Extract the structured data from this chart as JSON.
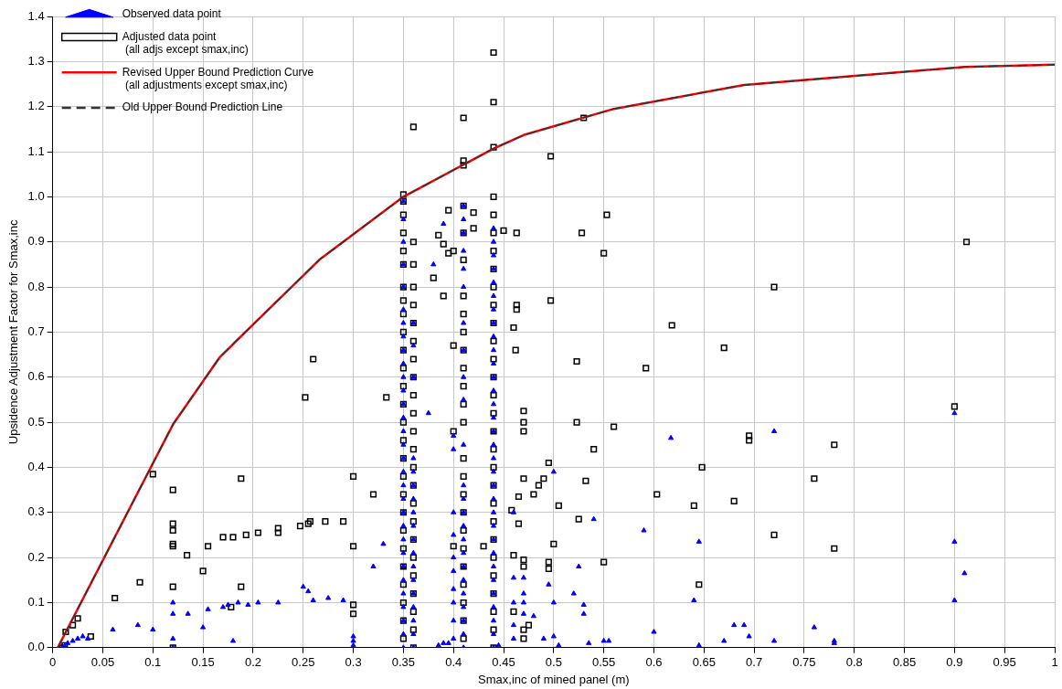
{
  "chart_data": {
    "type": "scatter",
    "xlabel": "Smax,inc of mined panel (m)",
    "ylabel": "Upsidence Adjustment Factor for Smax,inc",
    "xlim": [
      0,
      1
    ],
    "xticks": [
      0,
      0.05,
      0.1,
      0.15,
      0.2,
      0.25,
      0.3,
      0.35,
      0.4,
      0.45,
      0.5,
      0.55,
      0.6,
      0.65,
      0.7,
      0.75,
      0.8,
      0.85,
      0.9,
      0.95,
      1
    ],
    "ylim": [
      0,
      1.4
    ],
    "yticks": [
      {
        "value": 0,
        "label": "0.0"
      },
      0.1,
      0.2,
      0.3,
      0.4,
      0.5,
      0.6,
      0.7,
      0.8,
      0.9,
      {
        "value": 1,
        "label": "1.0"
      },
      1.1,
      1.2,
      1.3,
      1.4
    ],
    "grid": true,
    "legend": "top left",
    "series": [
      {
        "name": "Observed data point",
        "marker": "triangle",
        "color": "#0000ff",
        "x": [
          0.01,
          0.012,
          0.015,
          0.02,
          0.025,
          0.03,
          0.035,
          0.06,
          0.085,
          0.1,
          0.12,
          0.12,
          0.12,
          0.12,
          0.135,
          0.15,
          0.155,
          0.17,
          0.175,
          0.18,
          0.185,
          0.195,
          0.205,
          0.225,
          0.25,
          0.255,
          0.26,
          0.275,
          0.29,
          0.3,
          0.3,
          0.3,
          0.32,
          0.33,
          0.375,
          0.38,
          0.39,
          0.35,
          0.35,
          0.35,
          0.35,
          0.35,
          0.35,
          0.35,
          0.35,
          0.35,
          0.35,
          0.35,
          0.35,
          0.35,
          0.35,
          0.35,
          0.35,
          0.35,
          0.35,
          0.35,
          0.35,
          0.35,
          0.35,
          0.35,
          0.35,
          0.35,
          0.35,
          0.35,
          0.35,
          0.35,
          0.35,
          0.35,
          0.36,
          0.36,
          0.36,
          0.36,
          0.36,
          0.36,
          0.36,
          0.36,
          0.36,
          0.36,
          0.36,
          0.36,
          0.36,
          0.36,
          0.36,
          0.36,
          0.36,
          0.36,
          0.385,
          0.39,
          0.395,
          0.4,
          0.4,
          0.4,
          0.4,
          0.4,
          0.4,
          0.4,
          0.4,
          0.4,
          0.4,
          0.41,
          0.41,
          0.41,
          0.41,
          0.41,
          0.41,
          0.41,
          0.41,
          0.41,
          0.41,
          0.41,
          0.41,
          0.41,
          0.41,
          0.41,
          0.41,
          0.41,
          0.41,
          0.41,
          0.41,
          0.41,
          0.41,
          0.41,
          0.41,
          0.44,
          0.44,
          0.44,
          0.44,
          0.44,
          0.44,
          0.44,
          0.44,
          0.44,
          0.44,
          0.44,
          0.44,
          0.44,
          0.44,
          0.44,
          0.44,
          0.44,
          0.44,
          0.44,
          0.44,
          0.44,
          0.44,
          0.44,
          0.44,
          0.44,
          0.44,
          0.44,
          0.44,
          0.44,
          0.44,
          0.44,
          0.44,
          0.445,
          0.46,
          0.46,
          0.46,
          0.46,
          0.46,
          0.47,
          0.47,
          0.47,
          0.47,
          0.48,
          0.49,
          0.495,
          0.5,
          0.5,
          0.5,
          0.505,
          0.52,
          0.525,
          0.53,
          0.53,
          0.535,
          0.54,
          0.55,
          0.555,
          0.59,
          0.6,
          0.617,
          0.64,
          0.645,
          0.645,
          0.67,
          0.68,
          0.69,
          0.695,
          0.72,
          0.72,
          0.76,
          0.78,
          0.78,
          0.9,
          0.9,
          0.9,
          0.91
        ],
        "values": [
          0,
          0.003,
          0.01,
          0.015,
          0.02,
          0.025,
          0.02,
          0.04,
          0.05,
          0.04,
          0.1,
          0.075,
          0.02,
          0,
          0.075,
          0.045,
          0.085,
          0.09,
          0.095,
          0.015,
          0.1,
          0.095,
          0.1,
          0.1,
          0.135,
          0.125,
          0.105,
          0.11,
          0.105,
          0.025,
          0.005,
          0.015,
          0.18,
          0.23,
          0.52,
          0.85,
          0.94,
          0,
          0.03,
          0.06,
          0.09,
          0.12,
          0.15,
          0.18,
          0.21,
          0.24,
          0.27,
          0.3,
          0.33,
          0.36,
          0.39,
          0.42,
          0.45,
          0.48,
          0.51,
          0.54,
          0.57,
          0.6,
          0.63,
          0.66,
          0.69,
          0.72,
          0.75,
          0.8,
          0.85,
          0.9,
          0.95,
          0.99,
          0,
          0.03,
          0.06,
          0.09,
          0.12,
          0.15,
          0.18,
          0.21,
          0.24,
          0.27,
          0.3,
          0.33,
          0.36,
          0.39,
          0.42,
          0.6,
          0.67,
          0.72,
          0.005,
          0.01,
          0.01,
          0.02,
          0.06,
          0.1,
          0.13,
          0.17,
          0.2,
          0.25,
          0.3,
          0.44,
          0.47,
          0,
          0.03,
          0.06,
          0.09,
          0.12,
          0.15,
          0.18,
          0.21,
          0.24,
          0.27,
          0.3,
          0.33,
          0.45,
          0.55,
          0.6,
          0.66,
          0.72,
          0.8,
          0.84,
          0.88,
          0.92,
          0.95,
          0.98,
          0.36,
          0,
          0.03,
          0.06,
          0.09,
          0.12,
          0.15,
          0.18,
          0.21,
          0.24,
          0.27,
          0.3,
          0.33,
          0.36,
          0.39,
          0.42,
          0.45,
          0.48,
          0.51,
          0.54,
          0.57,
          0.6,
          0.63,
          0.66,
          0.69,
          0.72,
          0.75,
          0.78,
          0.81,
          0.84,
          0.87,
          0.9,
          0.93,
          0.005,
          0.02,
          0.05,
          0.1,
          0.155,
          0.3,
          0.075,
          0.1,
          0.12,
          0.155,
          0.07,
          0.02,
          0.14,
          0.39,
          0.1,
          0.025,
          0.005,
          0.12,
          0.18,
          0.095,
          0.075,
          0.01,
          0.285,
          0.015,
          0.015,
          0.26,
          0.035,
          0.465,
          0.105,
          0.005,
          0.235,
          0.015,
          0.05,
          0.05,
          0.025,
          0.48,
          0.015,
          0.045,
          0.015,
          0.01,
          0.52,
          0.235,
          0.105,
          0.165
        ]
      },
      {
        "name": "Adjusted data point\n (all adjs except smax,inc)",
        "marker": "square",
        "color": "#000000",
        "x": [
          0.01,
          0.012,
          0.013,
          0.02,
          0.025,
          0.038,
          0.062,
          0.087,
          0.1,
          0.12,
          0.12,
          0.12,
          0.12,
          0.12,
          0.12,
          0.12,
          0.134,
          0.15,
          0.155,
          0.17,
          0.178,
          0.18,
          0.188,
          0.188,
          0.193,
          0.205,
          0.225,
          0.225,
          0.247,
          0.252,
          0.255,
          0.257,
          0.26,
          0.272,
          0.29,
          0.3,
          0.3,
          0.3,
          0.3,
          0.32,
          0.333,
          0.36,
          0.38,
          0.385,
          0.39,
          0.39,
          0.395,
          0.395,
          0.4,
          0.4,
          0.4,
          0.4,
          0.41,
          0.41,
          0.41,
          0.42,
          0.42,
          0.43,
          0.44,
          0.44,
          0.44,
          0.45,
          0.458,
          0.46,
          0.46,
          0.46,
          0.463,
          0.463,
          0.463,
          0.462,
          0.465,
          0.465,
          0.47,
          0.47,
          0.47,
          0.47,
          0.47,
          0.47,
          0.47,
          0.47,
          0.475,
          0.48,
          0.485,
          0.49,
          0.495,
          0.495,
          0.495,
          0.497,
          0.497,
          0.5,
          0.505,
          0.523,
          0.523,
          0.525,
          0.528,
          0.53,
          0.532,
          0.54,
          0.55,
          0.55,
          0.553,
          0.56,
          0.592,
          0.603,
          0.618,
          0.64,
          0.645,
          0.648,
          0.67,
          0.68,
          0.695,
          0.695,
          0.72,
          0.72,
          0.76,
          0.78,
          0.78,
          0.9,
          0.912,
          0.35,
          0.35,
          0.35,
          0.35,
          0.35,
          0.35,
          0.35,
          0.35,
          0.35,
          0.35,
          0.35,
          0.35,
          0.35,
          0.35,
          0.35,
          0.35,
          0.35,
          0.35,
          0.35,
          0.35,
          0.35,
          0.35,
          0.35,
          0.35,
          0.35,
          0.35,
          0.35,
          0.36,
          0.36,
          0.36,
          0.36,
          0.36,
          0.36,
          0.36,
          0.36,
          0.36,
          0.36,
          0.36,
          0.36,
          0.36,
          0.36,
          0.36,
          0.36,
          0.36,
          0.36,
          0.36,
          0.36,
          0.36,
          0.36,
          0.36,
          0.41,
          0.41,
          0.41,
          0.41,
          0.41,
          0.41,
          0.41,
          0.41,
          0.41,
          0.41,
          0.41,
          0.41,
          0.41,
          0.41,
          0.41,
          0.41,
          0.41,
          0.41,
          0.41,
          0.41,
          0.41,
          0.41,
          0.44,
          0.44,
          0.44,
          0.44,
          0.44,
          0.44,
          0.44,
          0.44,
          0.44,
          0.44,
          0.44,
          0.44,
          0.44,
          0.44,
          0.44,
          0.44,
          0.44,
          0.44,
          0.44,
          0.44,
          0.44,
          0.44,
          0.44,
          0.44,
          0.44,
          0.44
        ],
        "values": [
          0,
          0.005,
          0.035,
          0.05,
          0.065,
          0.025,
          0.11,
          0.145,
          0.385,
          0.35,
          0.275,
          0.26,
          0.23,
          0.225,
          0.135,
          0,
          0.205,
          0.17,
          0.225,
          0.245,
          0.09,
          0.245,
          0.375,
          0.135,
          0.25,
          0.255,
          0.265,
          0.255,
          0.27,
          0.555,
          0.275,
          0.28,
          0.64,
          0.28,
          0.28,
          0.38,
          0.225,
          0.095,
          0.075,
          0.34,
          0.555,
          1.155,
          0.82,
          0.915,
          0.78,
          0.895,
          0.875,
          0.97,
          0.88,
          0.67,
          0.48,
          0.225,
          1.175,
          1.08,
          1.07,
          0.965,
          0.93,
          0.225,
          1.32,
          1.21,
          1.11,
          0.925,
          0.305,
          0.205,
          0.08,
          0.71,
          0.92,
          0.76,
          0.75,
          0.66,
          0.335,
          0.275,
          0.525,
          0.5,
          0.48,
          0.375,
          0.195,
          0.18,
          0.04,
          0.02,
          0.05,
          0.34,
          0.36,
          0.375,
          0.41,
          0.19,
          0.175,
          1.09,
          0.77,
          0.23,
          0.315,
          0.635,
          0.5,
          0.285,
          0.92,
          1.175,
          0.37,
          0.44,
          0.875,
          0.19,
          0.96,
          0.49,
          0.62,
          0.34,
          0.715,
          0.315,
          0.14,
          0.4,
          0.665,
          0.325,
          0.47,
          0.46,
          0.8,
          0.25,
          0.375,
          0.45,
          0.22,
          0.535,
          0.9,
          0.02,
          0.06,
          0.1,
          0.14,
          0.18,
          0.22,
          0.26,
          0.3,
          0.34,
          0.38,
          0.42,
          0.46,
          0.5,
          0.54,
          0.58,
          0.62,
          0.66,
          0.7,
          0.74,
          0.77,
          0.8,
          0.85,
          0.88,
          0.92,
          0.96,
          0.99,
          1.005,
          0,
          0.04,
          0.08,
          0.12,
          0.16,
          0.2,
          0.24,
          0.28,
          0.32,
          0.36,
          0.4,
          0.44,
          0.48,
          0.52,
          0.56,
          0.6,
          0.64,
          0.68,
          0.72,
          0.76,
          0.8,
          0.85,
          0.9,
          0.02,
          0.06,
          0.1,
          0.14,
          0.18,
          0.22,
          0.26,
          0.3,
          0.34,
          0.38,
          0.42,
          0.5,
          0.54,
          0.58,
          0.62,
          0.66,
          0.7,
          0.74,
          0.78,
          0.86,
          0.92,
          0.98,
          0,
          0.04,
          0.08,
          0.12,
          0.16,
          0.2,
          0.24,
          0.28,
          0.32,
          0.36,
          0.4,
          0.44,
          0.48,
          0.52,
          0.56,
          0.6,
          0.64,
          0.68,
          0.72,
          0.76,
          0.8,
          0.84,
          0.88,
          0.92,
          0.96,
          1.0
        ]
      },
      {
        "name": "Revised Upper Bound Prediction Curve\n (all adjustments except smax,inc)",
        "type": "line",
        "marker": "none",
        "line_style": "solid",
        "color": "#ff0000",
        "x": [
          0.005,
          0.12,
          0.167,
          0.267,
          0.35,
          0.44,
          0.47,
          0.56,
          0.69,
          0.91,
          1.0
        ],
        "values": [
          0,
          0.495,
          0.645,
          0.862,
          1.0,
          1.107,
          1.137,
          1.195,
          1.248,
          1.288,
          1.293
        ]
      },
      {
        "name": "Old Upper Bound Prediction Line",
        "type": "line",
        "marker": "none",
        "line_style": "dashed",
        "color": "#333333",
        "x": [
          0.005,
          0.12,
          0.167,
          0.267,
          0.35,
          0.44,
          0.47,
          0.56,
          0.69,
          0.91,
          1.0
        ],
        "values": [
          0,
          0.495,
          0.645,
          0.862,
          1.0,
          1.107,
          1.137,
          1.195,
          1.248,
          1.288,
          1.293
        ]
      }
    ]
  }
}
